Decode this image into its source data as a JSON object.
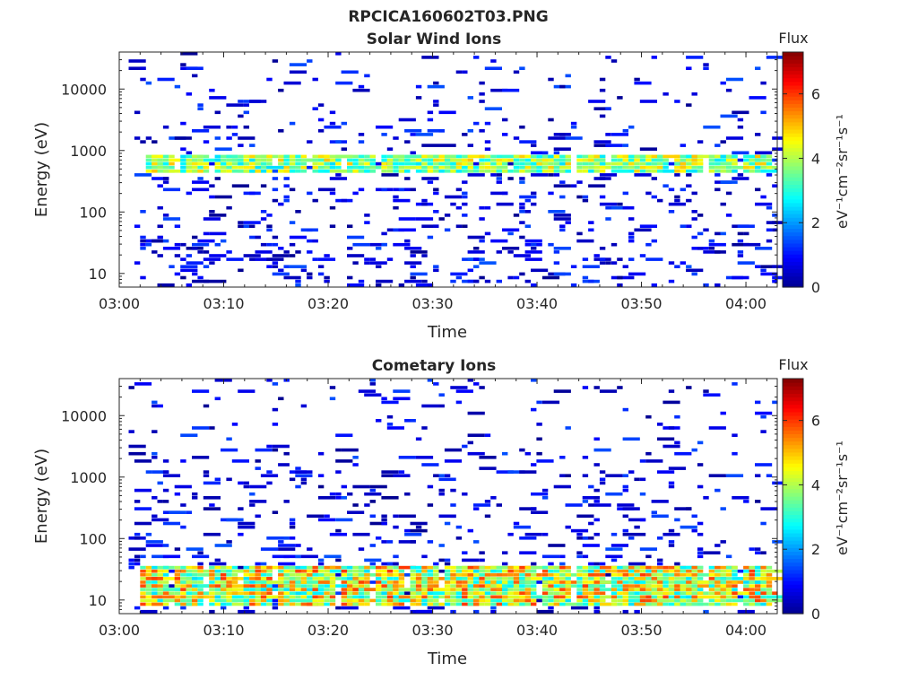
{
  "figure": {
    "title": "RPCICA160602T03.PNG"
  },
  "colormap": {
    "name": "jet",
    "stops": [
      "#00008f",
      "#0000ff",
      "#0080ff",
      "#00ffff",
      "#80ff80",
      "#ffff00",
      "#ff8000",
      "#ff0000",
      "#800000"
    ]
  },
  "chart_data": [
    {
      "type": "heatmap",
      "title": "Solar Wind Ions",
      "xlabel": "Time",
      "ylabel": "Energy (eV)",
      "xlim_minutes_after_0300": [
        0,
        63
      ],
      "x_tick_labels": [
        "03:00",
        "03:10",
        "03:20",
        "03:30",
        "03:40",
        "03:50",
        "04:00"
      ],
      "x_tick_minutes": [
        0,
        10,
        20,
        30,
        40,
        50,
        60
      ],
      "y_scale": "log",
      "ylim": [
        6,
        40000
      ],
      "y_tick_labels": [
        "10",
        "100",
        "1000",
        "10000"
      ],
      "y_tick_values": [
        10,
        100,
        1000,
        10000
      ],
      "colorbar": {
        "title": "Flux",
        "label": "eV⁻¹cm⁻²sr⁻¹s⁻¹",
        "range": [
          0,
          7.3
        ],
        "tick_labels": [
          "0",
          "2",
          "4",
          "6"
        ],
        "tick_values": [
          0,
          2,
          4,
          6
        ]
      },
      "bright_bands": {
        "description_values": "energy band of high flux blocks",
        "energy_range_eV": [
          400,
          900
        ],
        "flux_range": [
          2.5,
          5.0
        ],
        "block_times_minutes": [
          3.5,
          6.8,
          10.0,
          13.2,
          16.4,
          19.6,
          23.0,
          26.3,
          29.5,
          32.5,
          35.5,
          38.7,
          41.8,
          45.0,
          48.0,
          51.0,
          54.3,
          57.6,
          60.8
        ]
      },
      "background_flux_range": [
        0,
        1.5
      ]
    },
    {
      "type": "heatmap",
      "title": "Cometary Ions",
      "xlabel": "Time",
      "ylabel": "Energy (eV)",
      "xlim_minutes_after_0300": [
        0,
        63
      ],
      "x_tick_labels": [
        "03:00",
        "03:10",
        "03:20",
        "03:30",
        "03:40",
        "03:50",
        "04:00"
      ],
      "x_tick_minutes": [
        0,
        10,
        20,
        30,
        40,
        50,
        60
      ],
      "y_scale": "log",
      "ylim": [
        6,
        40000
      ],
      "y_tick_labels": [
        "10",
        "100",
        "1000",
        "10000"
      ],
      "y_tick_values": [
        10,
        100,
        1000,
        10000
      ],
      "colorbar": {
        "title": "Flux",
        "label": "eV⁻¹cm⁻²sr⁻¹s⁻¹",
        "range": [
          0,
          7.3
        ],
        "tick_labels": [
          "0",
          "2",
          "4",
          "6"
        ],
        "tick_values": [
          0,
          2,
          4,
          6
        ]
      },
      "bright_bands": {
        "description_values": "energy band of high flux blocks",
        "energy_range_eV": [
          8,
          35
        ],
        "flux_range": [
          2.5,
          6.0
        ],
        "block_times_minutes": [
          3.3,
          6.5,
          9.7,
          12.9,
          16.1,
          19.2,
          22.6,
          25.8,
          28.9,
          32.1,
          35.3,
          38.5,
          41.7,
          44.8,
          48.0,
          51.2,
          54.3,
          57.5,
          60.7
        ]
      },
      "background_flux_range": [
        0,
        1.5
      ]
    }
  ]
}
